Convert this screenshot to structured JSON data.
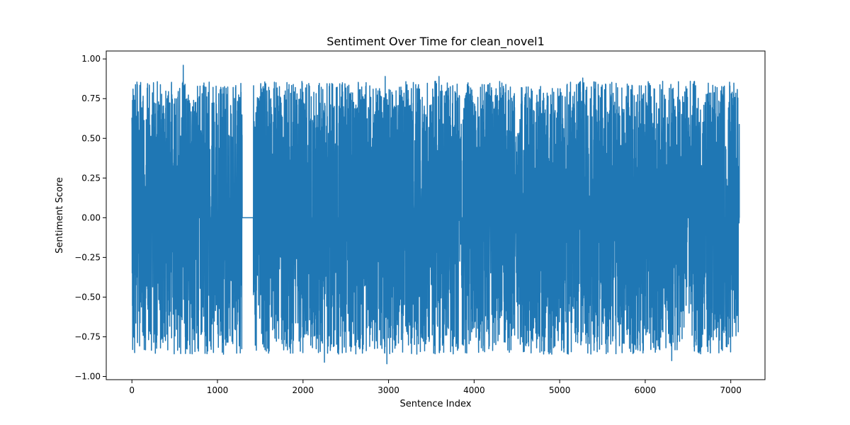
{
  "chart_data": {
    "type": "line",
    "title": "Sentiment Over Time for clean_novel1",
    "xlabel": "Sentence Index",
    "ylabel": "Sentiment Score",
    "xlim": [
      -300,
      7400
    ],
    "ylim": [
      -1.02,
      1.05
    ],
    "x_ticks": [
      0,
      1000,
      2000,
      3000,
      4000,
      5000,
      6000,
      7000
    ],
    "x_tick_labels": [
      "0",
      "1000",
      "2000",
      "3000",
      "4000",
      "5000",
      "6000",
      "7000"
    ],
    "y_ticks": [
      -1.0,
      -0.75,
      -0.5,
      -0.25,
      0.0,
      0.25,
      0.5,
      0.75,
      1.0
    ],
    "y_tick_labels": [
      "−1.00",
      "−0.75",
      "−0.50",
      "−0.25",
      "0.00",
      "0.25",
      "0.50",
      "0.75",
      "1.00"
    ],
    "grid": false,
    "series": [
      {
        "color": "#1f77b4",
        "n_points": 7100,
        "x_range": [
          0,
          7100
        ],
        "notable_values": [
          {
            "x": 600,
            "y": 0.96
          },
          {
            "x": 2980,
            "y": -0.92
          },
          {
            "x": 2250,
            "y": -0.91
          },
          {
            "x": 6310,
            "y": -0.9
          },
          {
            "x": 6300,
            "y": 0.84
          },
          {
            "x": 6990,
            "y": 0.83
          },
          {
            "x": 5270,
            "y": 0.88
          },
          {
            "x": 2960,
            "y": 0.89
          },
          {
            "x": 3590,
            "y": 0.89
          }
        ],
        "flat_zero_segment": [
          1290,
          1420
        ]
      }
    ]
  }
}
